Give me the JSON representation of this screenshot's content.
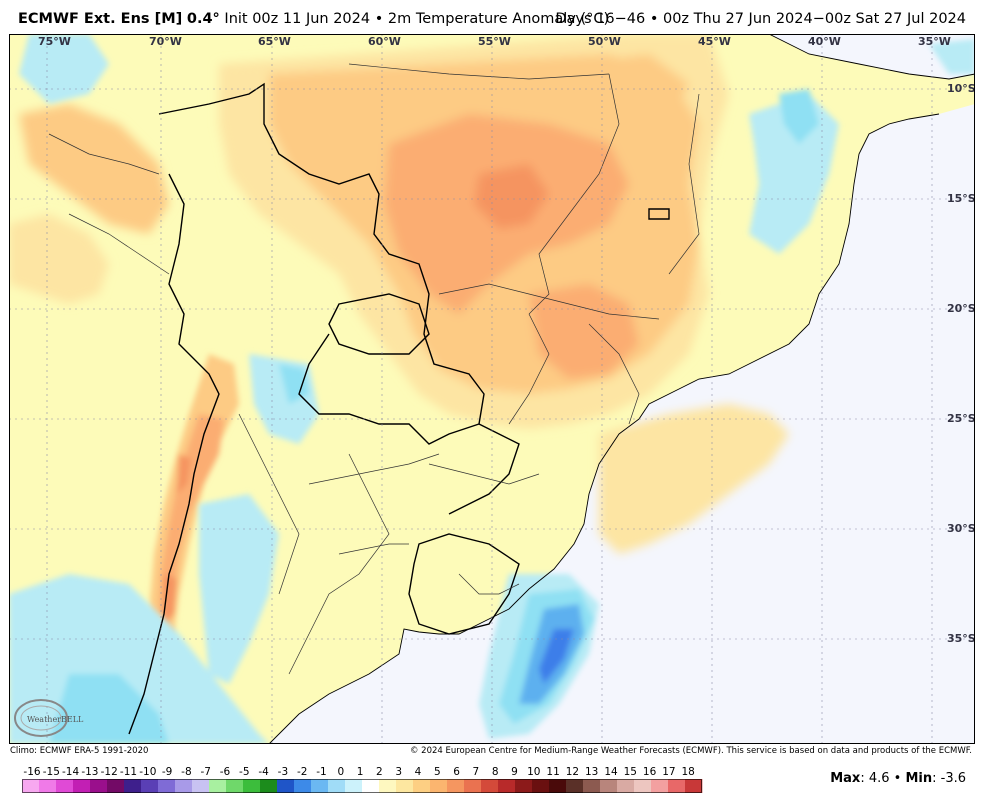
{
  "header": {
    "model": "ECMWF Ext. Ens [M]",
    "resolution": "0.4°",
    "init": "Init 00z 11 Jun 2024",
    "bullet": "•",
    "field": "2m Temperature Anomaly (°C)",
    "valid": "Days 16−46 • 00z Thu 27 Jun 2024−00z Sat 27 Jul 2024"
  },
  "map": {
    "lon_labels": [
      "75°W",
      "70°W",
      "65°W",
      "60°W",
      "55°W",
      "50°W",
      "45°W",
      "40°W",
      "35°W"
    ],
    "lat_labels": [
      "10°S",
      "15°S",
      "20°S",
      "25°S",
      "30°S",
      "35°S"
    ],
    "logo_text": "WeatherBELL",
    "colors": {
      "ocean": "#f4f6fd",
      "light_yellow": "#fdfbb9",
      "pale_orange": "#fde5a3",
      "light_orange": "#fdcb84",
      "orange": "#fbad72",
      "dark_orange": "#f59460",
      "light_blue": "#b8ebf5",
      "cyan": "#8fe0f3",
      "blue": "#5db0ef",
      "dark_blue": "#3d7ee9"
    }
  },
  "footer": {
    "climo": "Climo: ECMWF ERA-5 1991-2020",
    "copyright": "© 2024 European Centre for Medium-Range Weather Forecasts (ECMWF). This service is based on data and products of the ECMWF.",
    "max_label": "Max",
    "max_value": ": 4.6",
    "sep": " • ",
    "min_label": "Min",
    "min_value": ": -3.6"
  },
  "colorbar": {
    "labels": [
      "-16",
      "-15",
      "-14",
      "-13",
      "-12",
      "-11",
      "-10",
      "-9",
      "-8",
      "-7",
      "-6",
      "-5",
      "-4",
      "-3",
      "-2",
      "-1",
      "0",
      "1",
      "2",
      "3",
      "4",
      "5",
      "6",
      "7",
      "8",
      "9",
      "10",
      "11",
      "12",
      "13",
      "14",
      "15",
      "16",
      "17",
      "18"
    ],
    "colors": [
      "#f7a8f0",
      "#f07ae8",
      "#e04ad6",
      "#c21fb4",
      "#9a0f8c",
      "#730a66",
      "#3e1f8c",
      "#5a3fb5",
      "#7f6bd6",
      "#a89ae8",
      "#c8c2f2",
      "#a8f0a0",
      "#6fd86a",
      "#3cbd3c",
      "#1c8c1c",
      "#1f55c8",
      "#3d8ae8",
      "#6bb8f2",
      "#a0dcf7",
      "#ccf2fb",
      "#ffffff",
      "#fef8c0",
      "#fde7a0",
      "#fdcf83",
      "#fbb56f",
      "#f59660",
      "#ea7250",
      "#d44a3a",
      "#b82a2a",
      "#8c1a1a",
      "#6a1010",
      "#4a0a0a",
      "#5a3028",
      "#8c5a50",
      "#b8857c",
      "#d9aaa3",
      "#edc6c0",
      "#f3a0a0",
      "#e86868",
      "#c83838"
    ]
  }
}
